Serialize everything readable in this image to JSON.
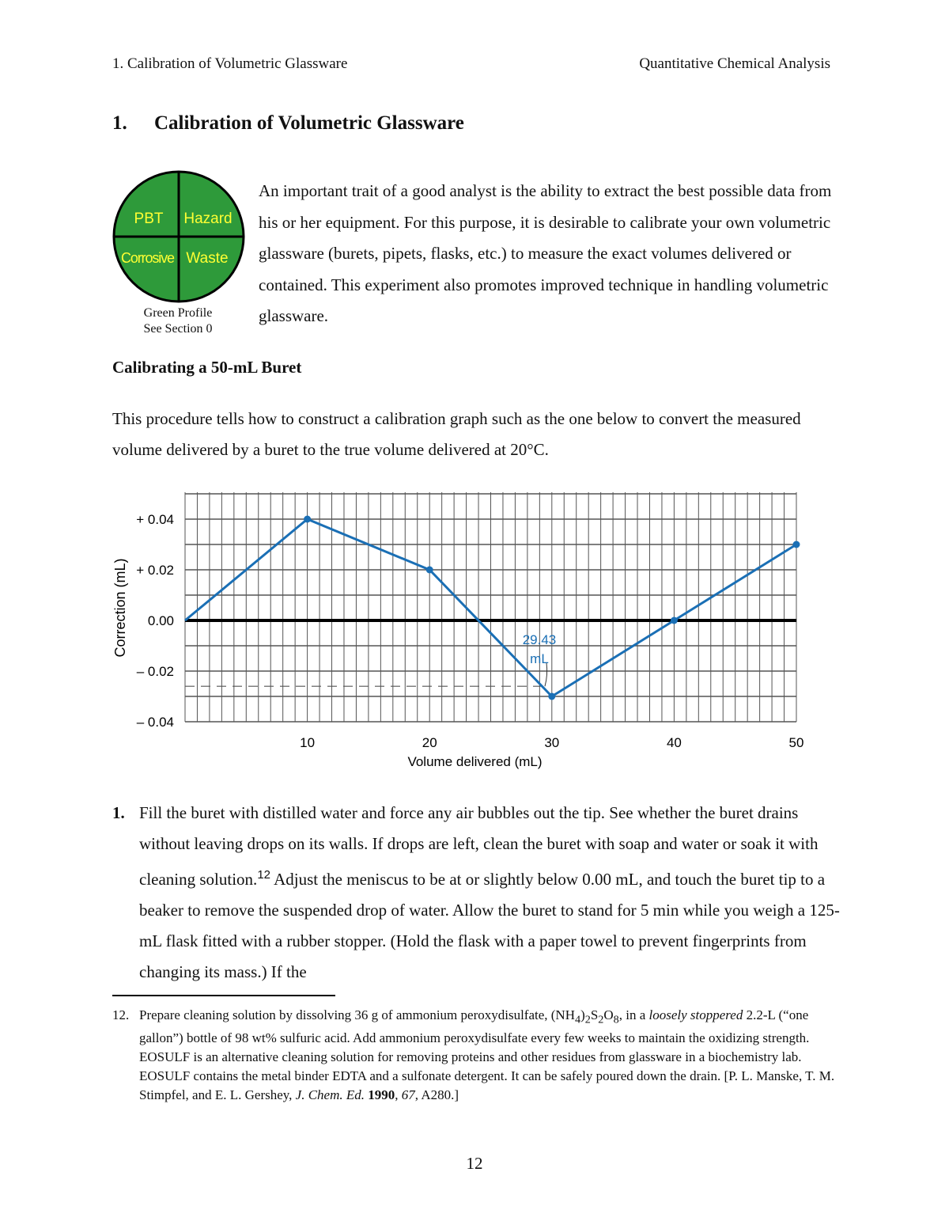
{
  "header": {
    "left": "1.  Calibration of Volumetric Glassware",
    "right": "Quantitative Chemical Analysis"
  },
  "title": {
    "number": "1.",
    "text": "Calibration of Volumetric Glassware"
  },
  "green_profile": {
    "quadrants": [
      "PBT",
      "Hazard",
      "Corrosive",
      "Waste"
    ],
    "caption_line1": "Green Profile",
    "caption_line2": "See Section 0",
    "colors": {
      "fill": "#2e9a3a",
      "text": "#ffff33"
    }
  },
  "intro": "An important trait of a good analyst is the ability to extract the best possible data from his or her equipment.  For this purpose, it is desirable to calibrate your own volumetric glassware (burets, pipets, flasks, etc.) to measure the exact volumes delivered or contained.  This experiment also promotes improved technique in handling volumetric glassware.",
  "section_heading": "Calibrating a 50-mL Buret",
  "procedure_intro": "This procedure tells how to construct a calibration graph such as the one below to convert the measured volume delivered by a buret to the true volume delivered at 20°C.",
  "chart_data": {
    "type": "line",
    "xlabel": "Volume delivered (mL)",
    "ylabel": "Correction (mL)",
    "x": [
      0,
      10,
      20,
      30,
      40,
      50
    ],
    "y": [
      0.0,
      0.04,
      0.02,
      -0.03,
      0.0,
      0.03
    ],
    "xticks": [
      10,
      20,
      30,
      40,
      50
    ],
    "xtick_labels": [
      "10",
      "20",
      "30",
      "40",
      "50"
    ],
    "yticks": [
      0.04,
      0.02,
      0.0,
      -0.02,
      -0.04
    ],
    "ytick_labels": [
      "+ 0.04",
      "+ 0.02",
      "0.00",
      "– 0.02",
      "– 0.04"
    ],
    "xlim": [
      0,
      50
    ],
    "ylim": [
      -0.04,
      0.05
    ],
    "grid": true,
    "annotation": {
      "line1": "29.43",
      "line2": "mL",
      "x": 29.43,
      "y": -0.026
    },
    "colors": {
      "series": "#1a6fb5",
      "grid": "#555555"
    }
  },
  "step1": {
    "number": "1.",
    "text": "Fill the buret with distilled water and force any air bubbles out the tip.  See whether  the buret drains without leaving drops on its walls.  If drops are left, clean the buret with soap and water or soak it with cleaning solution.",
    "ref": "12",
    "text2": "  Adjust the meniscus to be at or slightly below 0.00 mL, and touch the buret tip to a beaker to remove the suspended drop of water.  Allow the buret to stand for 5 min while you weigh a 125-mL flask fitted with a rubber stopper.  (Hold the flask with a paper towel to prevent fingerprints from changing its mass.) If the"
  },
  "footnote": {
    "number": "12.",
    "a": "Prepare cleaning solution by dissolving 36 g of ammonium peroxydisulfate, (NH",
    "b": "4",
    "c": ")",
    "d": "2",
    "e": "S",
    "f": "2",
    "g": "O",
    "h": "8",
    "i": ", in a ",
    "italic": "loosely stoppered",
    "j": " 2.2-L (“one gallon”) bottle of 98 wt% sulfuric acid.  Add ammonium peroxydisulfate every few weeks to maintain the oxidizing strength.  EOSULF is an alternative cleaning solution for removing proteins and other residues from glassware in a biochemistry lab.  EOSULF contains the metal binder EDTA and a sulfonate detergent.  It can be safely poured down the drain.  [P. L. Manske, T. M. Stimpfel, and E. L. Gershey, ",
    "journal": "J. Chem. Ed.",
    "k": " ",
    "year": "1990",
    "l": ", ",
    "vol": "67",
    "m": ", A280.]"
  },
  "page_number": "12"
}
